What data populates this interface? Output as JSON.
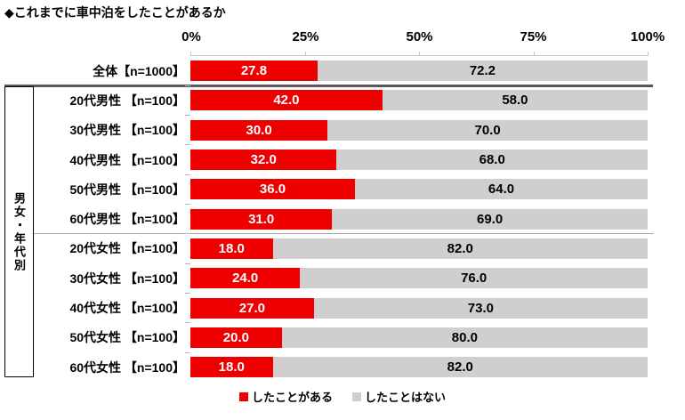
{
  "title": "◆これまでに車中泊をしたことがあるか",
  "chart_data": {
    "type": "bar",
    "orientation": "horizontal",
    "stacked": true,
    "unit": "%",
    "xlim": [
      0,
      100
    ],
    "grid": false,
    "legend_position": "bottom",
    "axis_ticks": [
      "0%",
      "25%",
      "50%",
      "75%",
      "100%"
    ],
    "group_label": "男女・年代別",
    "series": [
      {
        "name": "したことがある",
        "color": "#ee0000"
      },
      {
        "name": "したことはない",
        "color": "#d0cece"
      }
    ],
    "rows": [
      {
        "label": "全体【n=1000】",
        "yes": "27.8",
        "no": "72.2"
      },
      {
        "label": "20代男性 【n=100】",
        "yes": "42.0",
        "no": "58.0"
      },
      {
        "label": "30代男性 【n=100】",
        "yes": "30.0",
        "no": "70.0"
      },
      {
        "label": "40代男性 【n=100】",
        "yes": "32.0",
        "no": "68.0"
      },
      {
        "label": "50代男性 【n=100】",
        "yes": "36.0",
        "no": "64.0"
      },
      {
        "label": "60代男性 【n=100】",
        "yes": "31.0",
        "no": "69.0"
      },
      {
        "label": "20代女性 【n=100】",
        "yes": "18.0",
        "no": "82.0"
      },
      {
        "label": "30代女性 【n=100】",
        "yes": "24.0",
        "no": "76.0"
      },
      {
        "label": "40代女性 【n=100】",
        "yes": "27.0",
        "no": "73.0"
      },
      {
        "label": "50代女性 【n=100】",
        "yes": "20.0",
        "no": "80.0"
      },
      {
        "label": "60代女性 【n=100】",
        "yes": "18.0",
        "no": "82.0"
      }
    ]
  }
}
